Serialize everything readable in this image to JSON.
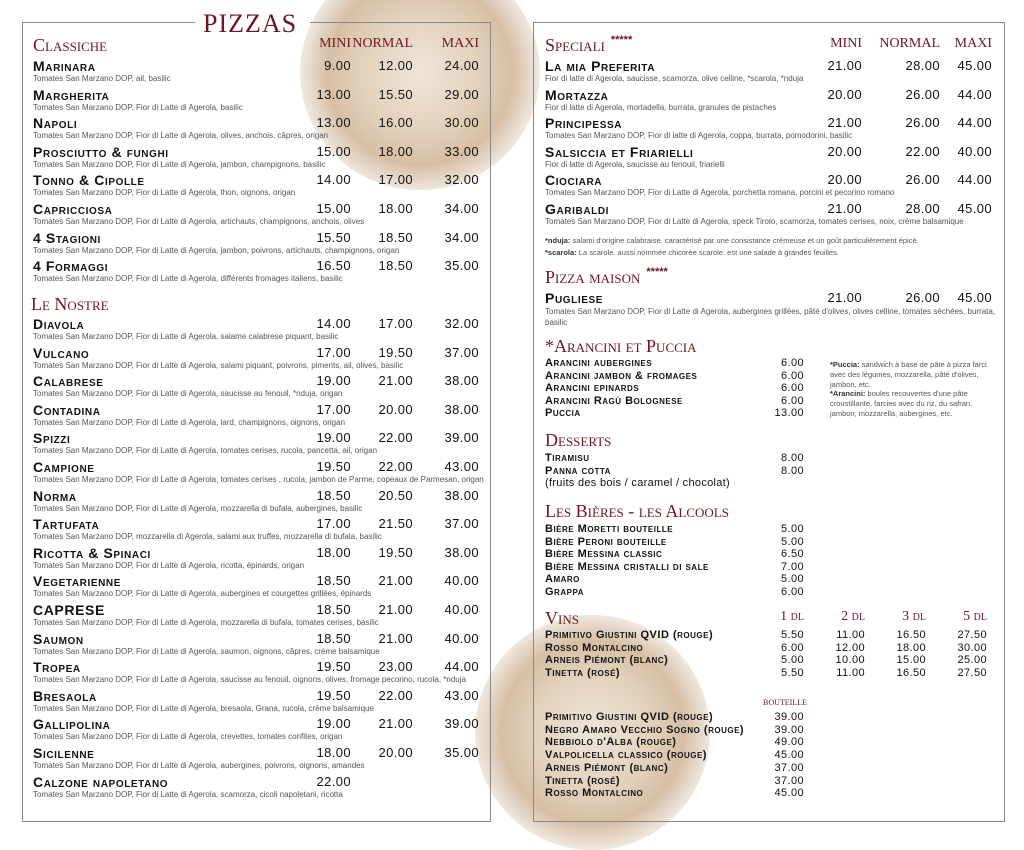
{
  "title": "PIZZAS",
  "colors": {
    "accent": "#6d1520",
    "text": "#111111",
    "desc": "#555555"
  },
  "size_labels": {
    "mini": "MINI",
    "normal": "NORMAL",
    "maxi": "MAXI"
  },
  "classiche": {
    "title": "Classiche",
    "items": [
      {
        "name": "Marinara",
        "desc": "Tomates San Marzano DOP, ail, basilic",
        "mini": "9.00",
        "normal": "12.00",
        "maxi": "24.00"
      },
      {
        "name": "Margherita",
        "desc": "Tomates San Marzano DOP, Fior di Latte di Agerola, basilic",
        "mini": "13.00",
        "normal": "15.50",
        "maxi": "29.00"
      },
      {
        "name": "Napoli",
        "desc": "Tomates San Marzano DOP, Fior di Latte di Agerola, olives, anchois, câpres, origan",
        "mini": "13.00",
        "normal": "16.00",
        "maxi": "30.00"
      },
      {
        "name": "Prosciutto & funghi",
        "desc": "Tomates San Marzano DOP, Fior di Latte di Agerola, jambon, champignons, basilic",
        "mini": "15.00",
        "normal": "18.00",
        "maxi": "33.00"
      },
      {
        "name": "Tonno & Cipolle",
        "desc": "Tomates San Marzano DOP, Fior di Latte di Agerola, thon, oignons, origan",
        "mini": "14.00",
        "normal": "17.00",
        "maxi": "32.00"
      },
      {
        "name": "Capricciosa",
        "desc": "Tomates San Marzano DOP, Fior di Latte di Agerola, artichauts, champignons, anchois, olives",
        "mini": "15.00",
        "normal": "18.00",
        "maxi": "34.00"
      },
      {
        "name": "4 Stagioni",
        "desc": "Tomates San Marzano DOP, Fior di Latte di Agerola, jambon, poivrons, artichauts, champignons, origan",
        "mini": "15.50",
        "normal": "18.50",
        "maxi": "34.00"
      },
      {
        "name": "4 Formaggi",
        "desc": "Tomates San Marzano DOP, Fior di Latte di Agerola, différents fromages italiens, basilic",
        "mini": "16.50",
        "normal": "18.50",
        "maxi": "35.00"
      }
    ]
  },
  "nostre": {
    "title": "Le Nostre",
    "items": [
      {
        "name": "Diavola",
        "desc": "Tomates San Marzano DOP, Fior di Latte di Agerola, salame calabrese piquant, basilic",
        "mini": "14.00",
        "normal": "17.00",
        "maxi": "32.00"
      },
      {
        "name": "Vulcano",
        "desc": "Tomates San Marzano DOP, Fior di Latte di Agerola, salami piquant, poivrons, piments, ail, olives, basilic",
        "mini": "17.00",
        "normal": "19.50",
        "maxi": "37.00"
      },
      {
        "name": "Calabrese",
        "desc": "Tomates San Marzano DOP, Fior di Latte di Agerola, saucisse au fenouil, *nduja, origan",
        "mini": "19.00",
        "normal": "21.00",
        "maxi": "38.00"
      },
      {
        "name": "Contadina",
        "desc": "Tomates San Marzano DOP, Fior di Latte di Agerola, lard, champignons, oignons, origan",
        "mini": "17.00",
        "normal": "20.00",
        "maxi": "38.00"
      },
      {
        "name": "Spizzi",
        "desc": "Tomates San Marzano DOP, Fior di Latte di Agerola, tomates cerises, rucola, pancetta, ail, origan",
        "mini": "19.00",
        "normal": "22.00",
        "maxi": "39.00"
      },
      {
        "name": "Campione",
        "desc": "Tomates San Marzano DOP, Fior di Latte di Agerola, tomates cerises , rucola, jambon de Parme, copeaux de Parmesan, origan",
        "mini": "19.50",
        "normal": "22.00",
        "maxi": "43.00"
      },
      {
        "name": "Norma",
        "desc": "Tomates San Marzano DOP, Fior di Latte di Agerola, mozzarella di bufala, aubergines, basilic",
        "mini": "18.50",
        "normal": "20.50",
        "maxi": "38.00"
      },
      {
        "name": "Tartufata",
        "desc": "Tomates San Marzano DOP, mozzarella di Agerola, salami aux truffes, mozzarella di bufala, basilic",
        "mini": "17.00",
        "normal": "21.50",
        "maxi": "37.00"
      },
      {
        "name": "Ricotta & Spinaci",
        "desc": "Tomates San Marzano DOP, Fior di Latte di Agerola, ricotta, épinards, origan",
        "mini": "18.00",
        "normal": "19.50",
        "maxi": "38.00"
      },
      {
        "name": "Vegetarienne",
        "desc": "Tomates San Marzano DOP, Fior di Latte di Agerola, aubergines et courgettes grillées, épinards",
        "mini": "18.50",
        "normal": "21.00",
        "maxi": "40.00"
      },
      {
        "name": "CAPRESE",
        "desc": "Tomates San Marzano DOP, Fior di Latte di Agerola, mozzarella di bufala, tomates cerises, basilic",
        "mini": "18.50",
        "normal": "21.00",
        "maxi": "40.00"
      },
      {
        "name": "Saumon",
        "desc": "Tomates San Marzano DOP, Fior di Latte di Agerola, saumon, oignons, câpres, crème balsamique",
        "mini": "18.50",
        "normal": "21.00",
        "maxi": "40.00"
      },
      {
        "name": "Tropea",
        "desc": "Tomates San Marzano DOP, Fior di Latte di Agerola, saucisse au fenouil, oignons, olives, fromage pecorino, rucola, *nduja",
        "mini": "19.50",
        "normal": "23.00",
        "maxi": "44.00"
      },
      {
        "name": "Bresaola",
        "desc": "Tomates San Marzano DOP, Fior di Latte di Agerola, bresaola, Grana, rucola, crème balsamique",
        "mini": "19.50",
        "normal": "22.00",
        "maxi": "43.00"
      },
      {
        "name": "Gallipolina",
        "desc": "Tomates San Marzano DOP, Fior di Latte di Agerola, crevettes, tomates confites, origan",
        "mini": "19.00",
        "normal": "21.00",
        "maxi": "39.00"
      },
      {
        "name": "Sicilenne",
        "desc": "Tomates San Marzano DOP, Fior di Latte di Agerola, aubergines, poivrons, oignons, amandes",
        "mini": "18.00",
        "normal": "20.00",
        "maxi": "35.00"
      },
      {
        "name": "Calzone napoletano",
        "desc": "Tomates San Marzano DOP, Fior di Latte di Agerola, scamorza, cicoli napoletani, ricotta",
        "mini": "22.00",
        "normal": "",
        "maxi": ""
      }
    ]
  },
  "speciali": {
    "title": "Speciali",
    "stars": "*****",
    "items": [
      {
        "name": "La mia Preferita",
        "desc": "Fior di latte di Agerola, saucisse, scamorza, olive celline, *scarola, *nduja",
        "mini": "21.00",
        "normal": "28.00",
        "maxi": "45.00"
      },
      {
        "name": "Mortazza",
        "desc": "Fior di latte di Agerola, mortadella, burrata, granules de pistaches",
        "mini": "20.00",
        "normal": "26.00",
        "maxi": "44.00"
      },
      {
        "name": "Principessa",
        "desc": "Tomates San Marzano DOP, Fior di latte di Agerola, coppa, burrata, pomodorini, basilic",
        "mini": "21.00",
        "normal": "26.00",
        "maxi": "44.00"
      },
      {
        "name": "Salsiccia et Friarielli",
        "desc": "Fior di latte di Agerola, saucisse au fenouil, friarielli",
        "mini": "20.00",
        "normal": "22.00",
        "maxi": "40.00"
      },
      {
        "name": "Ciociara",
        "desc": "Tomates San Marzano DOP, Fior di Latte di Agerola, porchetta romana, porcini et pecorino romano",
        "mini": "20.00",
        "normal": "26.00",
        "maxi": "44.00"
      },
      {
        "name": "Garibaldi",
        "desc": "Tomates San Marzano DOP, Fior di Latte di Agerola, speck Tirolo, scamorza, tomates cerises, noix, crème balsamique",
        "mini": "21.00",
        "normal": "28.00",
        "maxi": "45.00"
      }
    ],
    "notes": [
      {
        "term": "*nduja:",
        "text": " salami d'origine calabraise. caractérisé par une consistance crémeuse et un goût particulièrement épicé."
      },
      {
        "term": "*scarola:",
        "text": " La scarole. aussi nommée chicorée scarole. est une salade à grandes feuilles."
      }
    ]
  },
  "maison": {
    "title": "Pizza maison",
    "stars": "*****",
    "items": [
      {
        "name": "Pugliese",
        "desc": "Tomates San Marzano DOP, Fior di Latte di Agerola, aubergines grillées, pâté d'olives, olives celline, tomates séchées, burrata, basilic",
        "mini": "21.00",
        "normal": "26.00",
        "maxi": "45.00"
      }
    ]
  },
  "arancini": {
    "title": "*Arancini et Puccia",
    "items": [
      {
        "name": "Arancini aubergines",
        "price": "6.00"
      },
      {
        "name": "Arancini jambon & fromages",
        "price": "6.00"
      },
      {
        "name": "Arancini epinards",
        "price": "6.00"
      },
      {
        "name": "Arancini Ragù Bolognese",
        "price": "6.00"
      },
      {
        "name": "Puccia",
        "price": "13.00"
      }
    ],
    "notes": [
      {
        "term": "*Puccia:",
        "text": " sandwich à base de pâte à pizza farci avec des légumes, mozzarella, pâté d'olives, jambon, etc."
      },
      {
        "term": "*Arancini:",
        "text": " boules recouvertes d'une pâte croustillante, farcies avec du riz, du safran, jambon, mozzarella, aubergines, etc."
      }
    ]
  },
  "desserts": {
    "title": "Desserts",
    "items": [
      {
        "name": "Tiramisu",
        "price": "8.00"
      },
      {
        "name": "Panna cotta",
        "price": "8.00"
      }
    ],
    "note": "(fruits des bois / caramel / chocolat)"
  },
  "bieres": {
    "title": "Les Bières - les Alcools",
    "items": [
      {
        "name": "Bière Moretti bouteille",
        "price": "5.00"
      },
      {
        "name": "Bière Peroni bouteille",
        "price": "5.00"
      },
      {
        "name": "Bière Messina classic",
        "price": "6.50"
      },
      {
        "name": "Bière Messina cristalli di sale",
        "price": "7.00"
      },
      {
        "name": "Amaro",
        "price": "5.00"
      },
      {
        "name": "Grappa",
        "price": "6.00"
      }
    ]
  },
  "vins": {
    "title": "Vins",
    "columns": [
      "1 dl",
      "2 dl",
      "3 dl",
      "5 dl"
    ],
    "items": [
      {
        "name": "Primitivo Giustini QVID (rouge)",
        "prices": [
          "5.50",
          "11.00",
          "16.50",
          "27.50"
        ]
      },
      {
        "name": "Rosso Montalcino",
        "prices": [
          "6.00",
          "12.00",
          "18.00",
          "30.00"
        ]
      },
      {
        "name": "Arneis Piémont (blanc)",
        "prices": [
          "5.00",
          "10.00",
          "15.00",
          "25.00"
        ]
      },
      {
        "name": "Tinetta (rosé)",
        "prices": [
          "5.50",
          "11.00",
          "16.50",
          "27.50"
        ]
      }
    ],
    "bottle_label": "bouteille",
    "bottles": [
      {
        "name": "Primitivo Giustini QVID (rouge)",
        "price": "39.00"
      },
      {
        "name": "Negro Amaro Vecchio Sogno (rouge)",
        "price": "39.00"
      },
      {
        "name": "Nebbiolo d'Alba (rouge)",
        "price": "49.00"
      },
      {
        "name": "Valpolicella classico (rouge)",
        "price": "45.00"
      },
      {
        "name": "Arneis Piémont (blanc)",
        "price": "37.00"
      },
      {
        "name": "Tinetta (rosé)",
        "price": "37.00"
      },
      {
        "name": "Rosso Montalcino",
        "price": "45.00"
      }
    ]
  }
}
